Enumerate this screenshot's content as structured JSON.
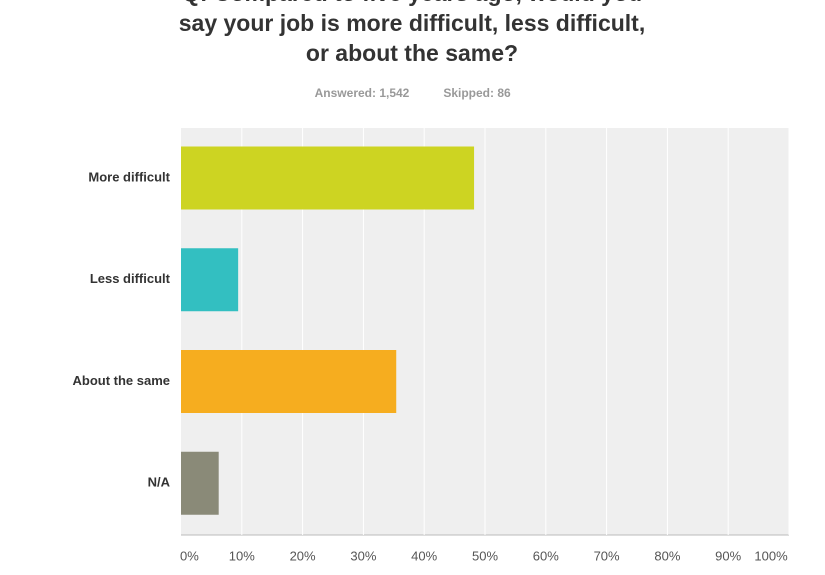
{
  "chart_data": {
    "type": "bar",
    "orientation": "horizontal",
    "title": [
      "Q: Compared to five years ago, would you",
      "say your job is more difficult, less difficult,",
      "or about the same?"
    ],
    "answered": "Answered: 1,542",
    "skipped": "Skipped: 86",
    "categories": [
      "More difficult",
      "Less difficult",
      "About the same",
      "N/A"
    ],
    "values": [
      48.2,
      9.4,
      35.4,
      6.2
    ],
    "colors": [
      "#cdd422",
      "#33bfc1",
      "#f6ad1f",
      "#8a8a78"
    ],
    "xlim": [
      0,
      100
    ],
    "xticks": [
      {
        "value": 0,
        "label": "0%"
      },
      {
        "value": 10,
        "label": "10%"
      },
      {
        "value": 20,
        "label": "20%"
      },
      {
        "value": 30,
        "label": "30%"
      },
      {
        "value": 40,
        "label": "40%"
      },
      {
        "value": 50,
        "label": "50%"
      },
      {
        "value": 60,
        "label": "60%"
      },
      {
        "value": 70,
        "label": "70%"
      },
      {
        "value": 80,
        "label": "80%"
      },
      {
        "value": 90,
        "label": "90%"
      },
      {
        "value": 100,
        "label": "100%"
      }
    ],
    "grid": true
  }
}
